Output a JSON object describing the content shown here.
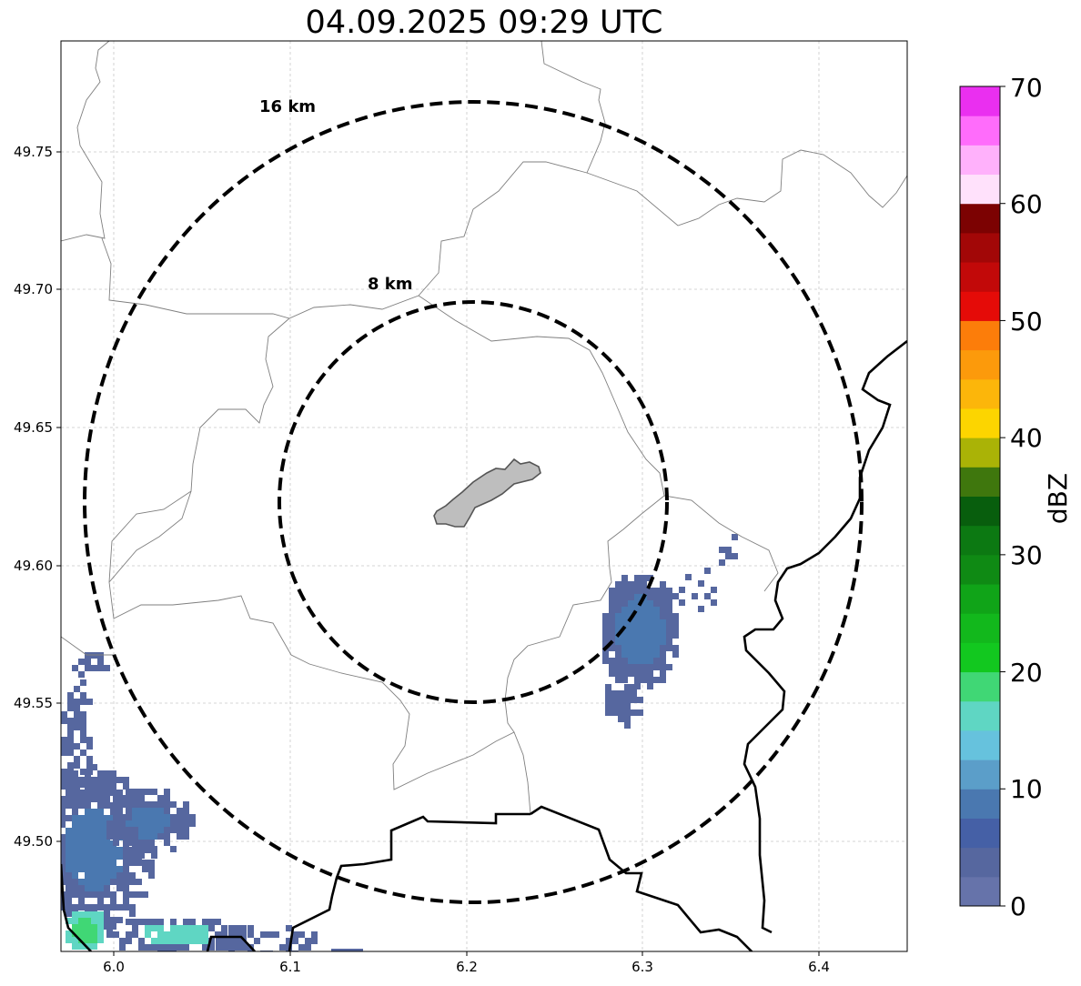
{
  "title": "04.09.2025 09:29 UTC",
  "map": {
    "x_ticks": [
      "6.0",
      "6.1",
      "6.2",
      "6.3",
      "6.4"
    ],
    "y_ticks": [
      "49.75",
      "49.70",
      "49.65",
      "49.60",
      "49.55",
      "49.50"
    ],
    "ring_labels": {
      "outer": "16 km",
      "inner": "8 km"
    },
    "gridlines": true,
    "ring_style": "dashed"
  },
  "colorbar": {
    "label": "dBZ",
    "ticks": [
      "0",
      "10",
      "20",
      "30",
      "40",
      "50",
      "60",
      "70"
    ],
    "colors": [
      "#6673aa",
      "#56679f",
      "#4560a6",
      "#4a78b0",
      "#5b9ec9",
      "#66c2dd",
      "#5fd6c3",
      "#40d775",
      "#12c81f",
      "#12b81c",
      "#10a418",
      "#0f8a14",
      "#0c7912",
      "#085e0d",
      "#3f770d",
      "#aab306",
      "#fcd500",
      "#fcb60a",
      "#fc9a0b",
      "#fc7d0a",
      "#e50b08",
      "#c20909",
      "#a20707",
      "#7c0202",
      "#ffe1fb",
      "#ffb1fb",
      "#ff6cfb",
      "#ea2ff0"
    ]
  },
  "colors": {
    "town_fill": "#bebebe",
    "region_lines": "#7f7f7f",
    "border_line": "#000000",
    "echo_light": "#56679f",
    "echo_mid": "#4a78b0",
    "echo_cyan": "#5fd6c3",
    "echo_green": "#40d775"
  }
}
